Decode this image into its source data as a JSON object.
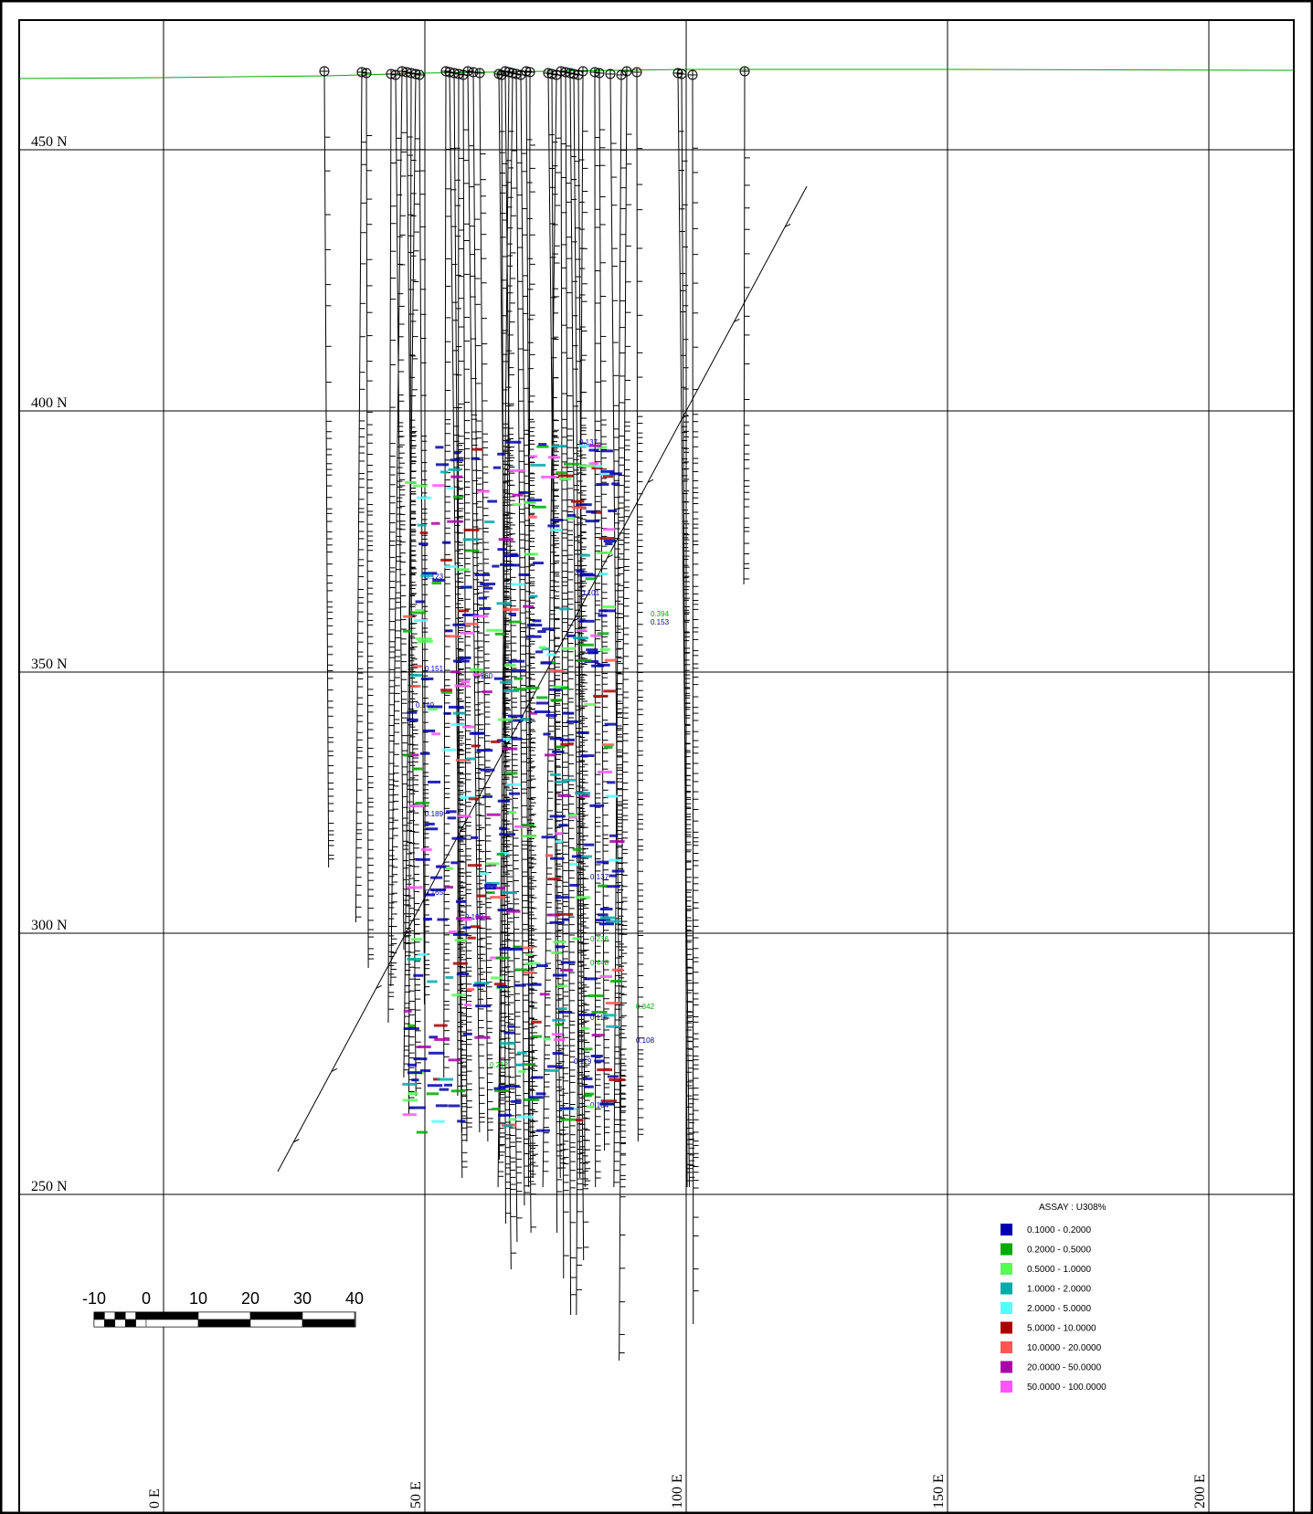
{
  "grid": {
    "northing_labels": [
      "450 N",
      "400 N",
      "350 N",
      "300 N",
      "250 N"
    ],
    "easting_labels": [
      "0 E",
      "50 E",
      "100 E",
      "150 E",
      "200 E"
    ]
  },
  "scale_bar": {
    "labels": [
      "-10",
      "0",
      "10",
      "20",
      "30",
      "40"
    ]
  },
  "legend": {
    "title": "ASSAY : U308%",
    "items": [
      {
        "range": "0.1000 -    0.2000",
        "color": "#0000aa"
      },
      {
        "range": "0.2000 -    0.5000",
        "color": "#00aa00"
      },
      {
        "range": "0.5000 -    1.0000",
        "color": "#55ff55"
      },
      {
        "range": "1.0000 -    2.0000",
        "color": "#00aaaa"
      },
      {
        "range": "2.0000 -    5.0000",
        "color": "#55ffff"
      },
      {
        "range": "5.0000 -   10.0000",
        "color": "#aa0000"
      },
      {
        "range": "10.0000 -   20.0000",
        "color": "#ff5555"
      },
      {
        "range": "20.0000 -   50.0000",
        "color": "#aa00aa"
      },
      {
        "range": "50.0000 -  100.0000",
        "color": "#ff55ff"
      }
    ]
  },
  "assay_labels": [
    {
      "text": "0.137",
      "color": "#0000aa"
    },
    {
      "text": "0.123",
      "color": "#0000aa"
    },
    {
      "text": "0.101",
      "color": "#0000aa"
    },
    {
      "text": "0.394",
      "color": "#00aa00"
    },
    {
      "text": "0.153",
      "color": "#0000aa"
    },
    {
      "text": "0.151",
      "color": "#0000aa"
    },
    {
      "text": "0.160",
      "color": "#0000aa"
    },
    {
      "text": "0.189",
      "color": "#0000aa"
    },
    {
      "text": "0.165",
      "color": "#0000aa"
    },
    {
      "text": "0.198",
      "color": "#0000aa"
    },
    {
      "text": "0.448",
      "color": "#00aa00"
    },
    {
      "text": "0.342",
      "color": "#00aa00"
    },
    {
      "text": "0.108",
      "color": "#0000aa"
    },
    {
      "text": "0.115",
      "color": "#0000aa"
    },
    {
      "text": "0.104",
      "color": "#0000aa"
    },
    {
      "text": "0.137",
      "color": "#0000aa"
    },
    {
      "text": "0.236",
      "color": "#00aa00"
    },
    {
      "text": "0.212",
      "color": "#00aa00"
    },
    {
      "text": "0.119",
      "color": "#0000aa"
    },
    {
      "text": "0.149",
      "color": "#0000aa"
    }
  ]
}
